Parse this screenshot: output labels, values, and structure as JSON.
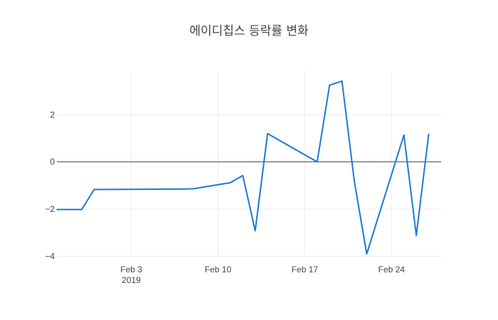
{
  "chart_data": {
    "type": "line",
    "title": "에이디칩스 등락률 변화",
    "xlabel": "",
    "ylabel": "",
    "x_range": [
      "2019-01-28",
      "2019-02-28"
    ],
    "ylim": [
      -4.05,
      3.85
    ],
    "grid": true,
    "legend": "none",
    "x_ticks": [
      {
        "date": "2019-02-03",
        "label": "Feb 3",
        "sublabel": "2019"
      },
      {
        "date": "2019-02-10",
        "label": "Feb 10",
        "sublabel": ""
      },
      {
        "date": "2019-02-17",
        "label": "Feb 17",
        "sublabel": ""
      },
      {
        "date": "2019-02-24",
        "label": "Feb 24",
        "sublabel": ""
      }
    ],
    "y_ticks": [
      {
        "value": 2,
        "label": "2"
      },
      {
        "value": 0,
        "label": "0"
      },
      {
        "value": -2,
        "label": "−2"
      },
      {
        "value": -4,
        "label": "−4"
      }
    ],
    "series": [
      {
        "color": "#1f77d4",
        "points": [
          {
            "x": "2019-01-28",
            "y": -2.02
          },
          {
            "x": "2019-01-30",
            "y": -2.02
          },
          {
            "x": "2019-01-31",
            "y": -1.17
          },
          {
            "x": "2019-02-07",
            "y": -1.15
          },
          {
            "x": "2019-02-08",
            "y": -1.14
          },
          {
            "x": "2019-02-11",
            "y": -0.88
          },
          {
            "x": "2019-02-12",
            "y": -0.58
          },
          {
            "x": "2019-02-13",
            "y": -2.92
          },
          {
            "x": "2019-02-14",
            "y": 1.2
          },
          {
            "x": "2019-02-18",
            "y": 0.0
          },
          {
            "x": "2019-02-19",
            "y": 3.25
          },
          {
            "x": "2019-02-20",
            "y": 3.43
          },
          {
            "x": "2019-02-21",
            "y": -0.82
          },
          {
            "x": "2019-02-22",
            "y": -3.9
          },
          {
            "x": "2019-02-25",
            "y": 1.14
          },
          {
            "x": "2019-02-26",
            "y": -3.12
          },
          {
            "x": "2019-02-27",
            "y": 1.18
          }
        ]
      }
    ]
  }
}
